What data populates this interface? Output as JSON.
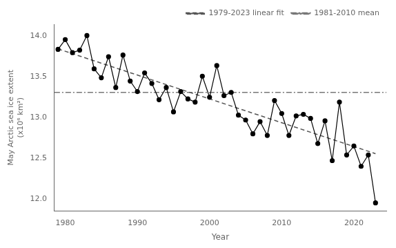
{
  "chart_data": {
    "type": "line",
    "x_label": "Year",
    "y_label": "May Arctic sea ice extent\n(x10⁶ km²)",
    "x": [
      1979,
      1980,
      1981,
      1982,
      1983,
      1984,
      1985,
      1986,
      1987,
      1988,
      1989,
      1990,
      1991,
      1992,
      1993,
      1994,
      1995,
      1996,
      1997,
      1998,
      1999,
      2000,
      2001,
      2002,
      2003,
      2004,
      2005,
      2006,
      2007,
      2008,
      2009,
      2010,
      2011,
      2012,
      2013,
      2014,
      2015,
      2016,
      2017,
      2018,
      2019,
      2020,
      2021,
      2022,
      2023
    ],
    "series": [
      {
        "color": "#000000",
        "marker": "circle",
        "line_style": "solid",
        "values": [
          13.84,
          13.96,
          13.8,
          13.83,
          14.01,
          13.6,
          13.49,
          13.75,
          13.37,
          13.77,
          13.45,
          13.32,
          13.55,
          13.42,
          13.22,
          13.37,
          13.07,
          13.32,
          13.23,
          13.19,
          13.51,
          13.25,
          13.64,
          13.27,
          13.31,
          13.03,
          12.97,
          12.8,
          12.95,
          12.78,
          13.21,
          13.05,
          12.78,
          13.02,
          13.04,
          12.99,
          12.68,
          12.96,
          12.47,
          13.19,
          12.54,
          12.65,
          12.4,
          12.54,
          11.95
        ]
      },
      {
        "name": "1979-2023 linear fit",
        "color": "#555555",
        "marker": "none",
        "line_style": "dashed",
        "x": [
          1979,
          2023
        ],
        "values": [
          13.84572,
          12.55564
        ]
      },
      {
        "name": "1981-2010 mean",
        "color": "#777777",
        "marker": "none",
        "line_style": "dashdot",
        "x": [
          1978.5,
          2024.5
        ],
        "values": [
          13.31,
          13.31
        ]
      }
    ],
    "xlim": [
      1978.5,
      2024.5
    ],
    "xticks": [
      1980,
      1990,
      2000,
      2010,
      2020
    ],
    "ylim": [
      11.85,
      14.15
    ],
    "yticks": [
      {
        "value": 12.0,
        "label": "12.0"
      },
      {
        "value": 12.5,
        "label": "12.5"
      },
      {
        "value": 13.0,
        "label": "13.0"
      },
      {
        "value": 13.5,
        "label": "13.5"
      },
      {
        "value": 14.0,
        "label": "14.0"
      }
    ],
    "grid": false,
    "legend": "upper right"
  }
}
